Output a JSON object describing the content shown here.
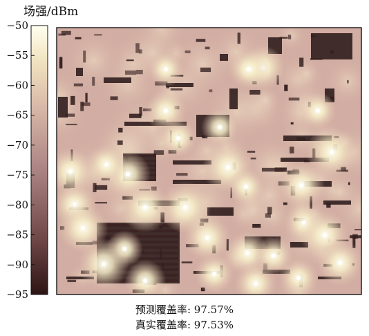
{
  "chart_data": {
    "type": "heatmap",
    "title": "",
    "colorbar": {
      "label": "场强/dBm",
      "range": [
        -95,
        -50
      ],
      "ticks": [
        -50,
        -55,
        -60,
        -65,
        -70,
        -75,
        -80,
        -85,
        -90,
        -95
      ],
      "colors": [
        "#2d1414",
        "#6e4646",
        "#a78080",
        "#d9b9a8",
        "#f2e6c2",
        "#fffff0"
      ]
    },
    "map_description": "predicted field strength over urban area; bright spots at transmitter sites, dark building footprints",
    "grid": false
  },
  "captions": {
    "predicted_coverage": "预测覆盖率: 97.57%",
    "true_coverage": "真实覆盖率: 97.53%"
  }
}
